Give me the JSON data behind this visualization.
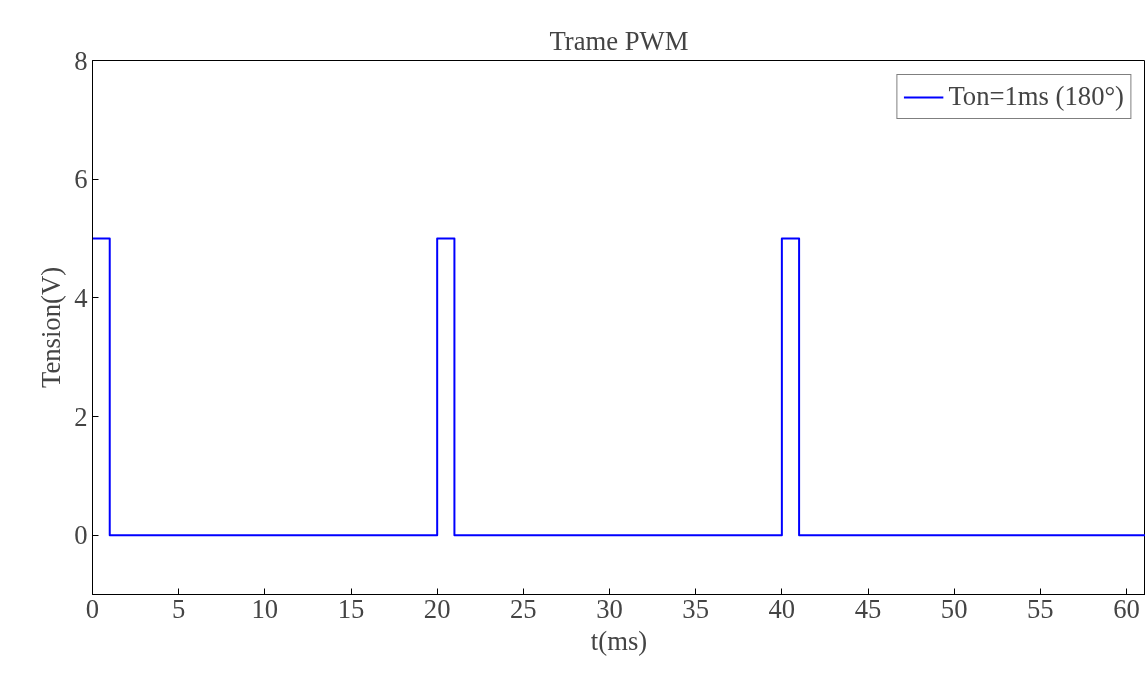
{
  "chart_data": {
    "type": "line",
    "title": "Trame PWM",
    "xlabel": "t(ms)",
    "ylabel": "Tension(V)",
    "series": [
      {
        "name": "Ton=1ms (180°)",
        "color": "#0000ff",
        "x": [
          0,
          1,
          1,
          20,
          20,
          21,
          21,
          40,
          40,
          41,
          41,
          61.1
        ],
        "values": [
          5,
          5,
          0,
          0,
          5,
          5,
          0,
          0,
          5,
          5,
          0,
          0
        ]
      }
    ],
    "xlim": [
      0,
      61.1
    ],
    "ylim": [
      -1,
      8
    ],
    "xticks": [
      0,
      5,
      10,
      15,
      20,
      25,
      30,
      35,
      40,
      45,
      50,
      55,
      60
    ],
    "yticks": [
      0,
      2,
      4,
      6,
      8
    ],
    "grid": false,
    "legend": "top right",
    "marker": "none",
    "line_style": "solid"
  }
}
